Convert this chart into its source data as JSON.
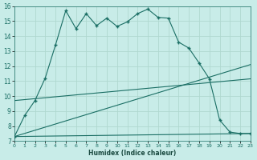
{
  "xlabel": "Humidex (Indice chaleur)",
  "background_color": "#c8ece8",
  "grid_color": "#b0d8d0",
  "line_color": "#1a6e64",
  "xlim": [
    0,
    23
  ],
  "ylim": [
    7,
    16
  ],
  "xtick_labels": [
    "0",
    "1",
    "2",
    "3",
    "4",
    "5",
    "6",
    "7",
    "8",
    "9",
    "10",
    "11",
    "12",
    "13",
    "14",
    "15",
    "16",
    "17",
    "18",
    "19",
    "20",
    "21",
    "22",
    "23"
  ],
  "ytick_labels": [
    "7",
    "8",
    "9",
    "10",
    "11",
    "12",
    "13",
    "14",
    "15",
    "16"
  ],
  "ytick_vals": [
    7,
    8,
    9,
    10,
    11,
    12,
    13,
    14,
    15,
    16
  ],
  "series1_x": [
    0,
    1,
    2,
    3,
    4,
    5,
    6,
    7,
    8,
    9,
    10,
    11,
    12,
    13,
    14,
    15,
    16,
    17,
    18,
    19,
    20,
    21,
    22,
    23
  ],
  "series1_y": [
    7.3,
    8.7,
    9.7,
    11.2,
    13.4,
    15.7,
    14.5,
    15.5,
    14.7,
    15.2,
    14.65,
    14.95,
    15.5,
    15.8,
    15.25,
    15.2,
    13.6,
    13.2,
    12.2,
    11.15,
    8.4,
    7.6,
    7.5,
    7.5
  ],
  "line2_x": [
    0,
    23
  ],
  "line2_y": [
    7.3,
    12.1
  ],
  "line3_x": [
    0,
    23
  ],
  "line3_y": [
    7.3,
    7.5
  ],
  "line4_x": [
    0,
    23
  ],
  "line4_y": [
    9.7,
    11.15
  ]
}
